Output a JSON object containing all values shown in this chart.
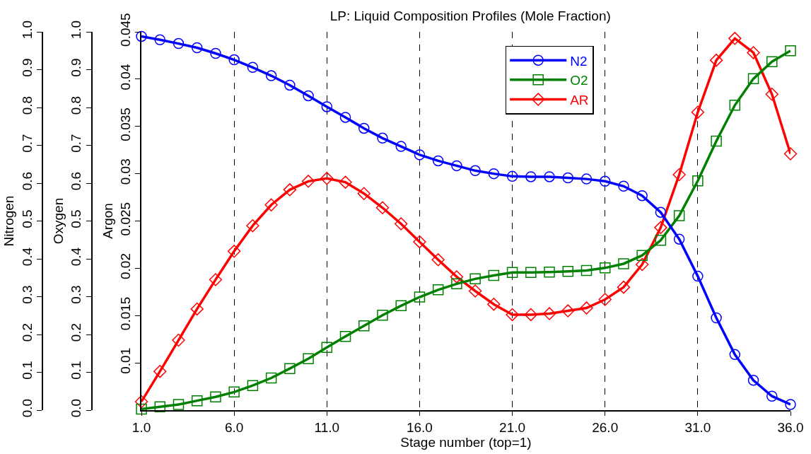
{
  "chart_data": {
    "type": "line",
    "title": "LP: Liquid Composition Profiles (Mole Fraction)",
    "xlabel": "Stage number (top=1)",
    "ylabel": "Argon",
    "y2label": "Oxygen",
    "y3label": "Nitrogen",
    "x": [
      1,
      2,
      3,
      4,
      5,
      6,
      7,
      8,
      9,
      10,
      11,
      12,
      13,
      14,
      15,
      16,
      17,
      18,
      19,
      20,
      21,
      22,
      23,
      24,
      25,
      26,
      27,
      28,
      29,
      30,
      31,
      32,
      33,
      34,
      35,
      36
    ],
    "series": [
      {
        "name": "N2",
        "color": "#0000ff",
        "axis": "y3",
        "marker": "circle",
        "values": [
          0.988,
          0.979,
          0.969,
          0.958,
          0.943,
          0.926,
          0.906,
          0.884,
          0.859,
          0.831,
          0.802,
          0.774,
          0.745,
          0.719,
          0.697,
          0.675,
          0.659,
          0.646,
          0.633,
          0.625,
          0.618,
          0.617,
          0.617,
          0.614,
          0.611,
          0.605,
          0.592,
          0.567,
          0.523,
          0.452,
          0.354,
          0.244,
          0.147,
          0.079,
          0.037,
          0.015
        ]
      },
      {
        "name": "O2",
        "color": "#008000",
        "axis": "y2",
        "marker": "square",
        "values": [
          0.003,
          0.009,
          0.015,
          0.025,
          0.035,
          0.048,
          0.065,
          0.085,
          0.11,
          0.136,
          0.166,
          0.195,
          0.223,
          0.251,
          0.276,
          0.299,
          0.318,
          0.334,
          0.347,
          0.356,
          0.364,
          0.364,
          0.365,
          0.367,
          0.369,
          0.376,
          0.387,
          0.409,
          0.449,
          0.514,
          0.606,
          0.711,
          0.806,
          0.876,
          0.921,
          0.95
        ]
      },
      {
        "name": "AR",
        "color": "#ff0000",
        "axis": "y",
        "marker": "diamond",
        "values": [
          0.0059,
          0.0091,
          0.0124,
          0.0157,
          0.0188,
          0.0218,
          0.0245,
          0.0267,
          0.0283,
          0.0292,
          0.0295,
          0.0291,
          0.0279,
          0.0264,
          0.0247,
          0.0228,
          0.0209,
          0.0191,
          0.0176,
          0.0162,
          0.0151,
          0.0151,
          0.0152,
          0.0155,
          0.0158,
          0.0167,
          0.018,
          0.0204,
          0.0243,
          0.0299,
          0.0365,
          0.042,
          0.0443,
          0.0428,
          0.0384,
          0.0321
        ]
      }
    ],
    "xlim": [
      1,
      36
    ],
    "xticks": [
      {
        "value": 1,
        "label": "1.0"
      },
      {
        "value": 6,
        "label": "6.0"
      },
      {
        "value": 11,
        "label": "11.0"
      },
      {
        "value": 16,
        "label": "16.0"
      },
      {
        "value": 21,
        "label": "21.0"
      },
      {
        "value": 26,
        "label": "26.0"
      },
      {
        "value": 31,
        "label": "31.0"
      },
      {
        "value": 36,
        "label": "36.0"
      }
    ],
    "ylim": [
      0.005,
      0.045
    ],
    "yticks": [
      0.01,
      0.015,
      0.02,
      0.025,
      0.03,
      0.035,
      0.04,
      0.045
    ],
    "y2lim": [
      0,
      1
    ],
    "y2ticks": [
      {
        "value": 0,
        "label": "0.0"
      },
      {
        "value": 0.1,
        "label": "0.1"
      },
      {
        "value": 0.2,
        "label": "0.2"
      },
      {
        "value": 0.3,
        "label": "0.3"
      },
      {
        "value": 0.4,
        "label": "0.4"
      },
      {
        "value": 0.5,
        "label": "0.5"
      },
      {
        "value": 0.6,
        "label": "0.6"
      },
      {
        "value": 0.7,
        "label": "0.7"
      },
      {
        "value": 0.8,
        "label": "0.8"
      },
      {
        "value": 0.9,
        "label": "0.9"
      },
      {
        "value": 1,
        "label": "1.0"
      }
    ],
    "y3lim": [
      0,
      1
    ],
    "y3ticks": [
      {
        "value": 0,
        "label": "0.0"
      },
      {
        "value": 0.1,
        "label": "0.1"
      },
      {
        "value": 0.2,
        "label": "0.2"
      },
      {
        "value": 0.3,
        "label": "0.3"
      },
      {
        "value": 0.4,
        "label": "0.4"
      },
      {
        "value": 0.5,
        "label": "0.5"
      },
      {
        "value": 0.6,
        "label": "0.6"
      },
      {
        "value": 0.7,
        "label": "0.7"
      },
      {
        "value": 0.8,
        "label": "0.8"
      },
      {
        "value": 0.9,
        "label": "0.9"
      },
      {
        "value": 1,
        "label": "1.0"
      }
    ],
    "grid": "x",
    "legend": "top right"
  }
}
